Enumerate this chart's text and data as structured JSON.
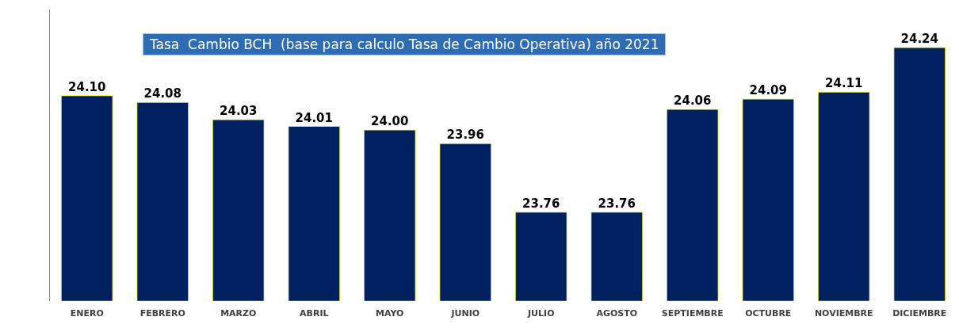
{
  "chart_data": {
    "type": "bar",
    "title": "Tasa  Cambio BCH  (base para calculo Tasa de Cambio Operativa) año 2021",
    "categories": [
      "ENERO",
      "FEBRERO",
      "MARZO",
      "ABRIL",
      "MAYO",
      "JUNIO",
      "JULIO",
      "AGOSTO",
      "SEPTIEMBRE",
      "OCTUBRE",
      "NOVIEMBRE",
      "DICIEMBRE"
    ],
    "values": [
      24.1,
      24.08,
      24.03,
      24.01,
      24.0,
      23.96,
      23.76,
      23.76,
      24.06,
      24.09,
      24.11,
      24.24
    ],
    "value_labels": [
      "24.10",
      "24.08",
      "24.03",
      "24.01",
      "24.00",
      "23.96",
      "23.76",
      "23.76",
      "24.06",
      "24.09",
      "24.11",
      "24.24"
    ],
    "color": "#002060",
    "ylim": [
      23.5,
      24.35
    ],
    "tick_labels": "x",
    "grid": false,
    "legend": false
  }
}
